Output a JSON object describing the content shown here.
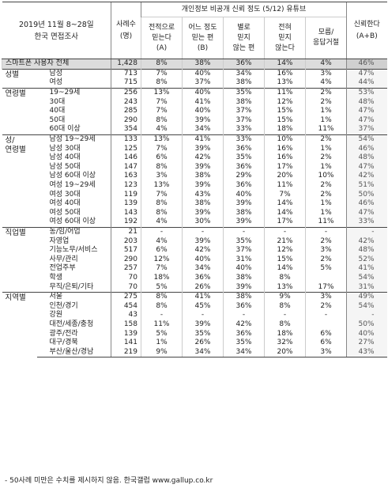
{
  "header": {
    "title_line1": "2019년 11월 8~28일",
    "title_line2": "한국 면접조사",
    "n_label_line1": "사례수",
    "n_label_line2": "(명)",
    "group_label": "개인정보 비공개 신뢰 정도 (5/12) 유튜브",
    "cols": [
      {
        "l1": "전적으로",
        "l2": "믿는다",
        "l3": "(A)"
      },
      {
        "l1": "어느 정도",
        "l2": "믿는 편",
        "l3": "(B)"
      },
      {
        "l1": "별로",
        "l2": "믿지",
        "l3": "않는 편"
      },
      {
        "l1": "전혀",
        "l2": "믿지",
        "l3": "않는다"
      },
      {
        "l1": "모름/",
        "l2": "응답거절",
        "l3": ""
      }
    ],
    "ab_line1": "신뢰한다",
    "ab_line2": "(A+B)"
  },
  "rows": [
    {
      "cat": "",
      "label": "스마트폰 사용자 전체",
      "n": "1,428",
      "a": "8%",
      "b": "38%",
      "c": "36%",
      "d": "14%",
      "e": "4%",
      "ab": "46%"
    },
    {
      "cat": "성별",
      "label": "남성",
      "n": "713",
      "a": "7%",
      "b": "40%",
      "c": "34%",
      "d": "16%",
      "e": "3%",
      "ab": "47%"
    },
    {
      "cat": "",
      "label": "여성",
      "n": "715",
      "a": "8%",
      "b": "37%",
      "c": "38%",
      "d": "13%",
      "e": "4%",
      "ab": "44%"
    },
    {
      "cat": "연령별",
      "label": "19~29세",
      "n": "256",
      "a": "13%",
      "b": "40%",
      "c": "35%",
      "d": "11%",
      "e": "2%",
      "ab": "53%"
    },
    {
      "cat": "",
      "label": "30대",
      "n": "243",
      "a": "7%",
      "b": "41%",
      "c": "38%",
      "d": "12%",
      "e": "2%",
      "ab": "48%"
    },
    {
      "cat": "",
      "label": "40대",
      "n": "285",
      "a": "7%",
      "b": "40%",
      "c": "37%",
      "d": "15%",
      "e": "1%",
      "ab": "47%"
    },
    {
      "cat": "",
      "label": "50대",
      "n": "290",
      "a": "8%",
      "b": "39%",
      "c": "37%",
      "d": "15%",
      "e": "1%",
      "ab": "47%"
    },
    {
      "cat": "",
      "label": "60대 이상",
      "n": "354",
      "a": "4%",
      "b": "34%",
      "c": "33%",
      "d": "18%",
      "e": "11%",
      "ab": "37%"
    },
    {
      "cat": "성/",
      "label": "남성 19~29세",
      "n": "133",
      "a": "13%",
      "b": "41%",
      "c": "33%",
      "d": "10%",
      "e": "2%",
      "ab": "54%"
    },
    {
      "cat": "연령별",
      "label": "남성 30대",
      "n": "125",
      "a": "7%",
      "b": "39%",
      "c": "36%",
      "d": "16%",
      "e": "1%",
      "ab": "46%"
    },
    {
      "cat": "",
      "label": "남성 40대",
      "n": "146",
      "a": "6%",
      "b": "42%",
      "c": "35%",
      "d": "16%",
      "e": "2%",
      "ab": "48%"
    },
    {
      "cat": "",
      "label": "남성 50대",
      "n": "147",
      "a": "8%",
      "b": "39%",
      "c": "36%",
      "d": "17%",
      "e": "1%",
      "ab": "47%"
    },
    {
      "cat": "",
      "label": "남성 60대 이상",
      "n": "163",
      "a": "3%",
      "b": "38%",
      "c": "29%",
      "d": "20%",
      "e": "10%",
      "ab": "42%"
    },
    {
      "cat": "",
      "label": "여성 19~29세",
      "n": "123",
      "a": "13%",
      "b": "39%",
      "c": "36%",
      "d": "11%",
      "e": "2%",
      "ab": "51%"
    },
    {
      "cat": "",
      "label": "여성 30대",
      "n": "119",
      "a": "7%",
      "b": "43%",
      "c": "40%",
      "d": "7%",
      "e": "2%",
      "ab": "50%"
    },
    {
      "cat": "",
      "label": "여성 40대",
      "n": "139",
      "a": "8%",
      "b": "38%",
      "c": "39%",
      "d": "14%",
      "e": "1%",
      "ab": "46%"
    },
    {
      "cat": "",
      "label": "여성 50대",
      "n": "143",
      "a": "8%",
      "b": "39%",
      "c": "38%",
      "d": "14%",
      "e": "1%",
      "ab": "47%"
    },
    {
      "cat": "",
      "label": "여성 60대 이상",
      "n": "192",
      "a": "4%",
      "b": "30%",
      "c": "39%",
      "d": "17%",
      "e": "11%",
      "ab": "33%"
    },
    {
      "cat": "직업별",
      "label": "농/임/어업",
      "n": "21",
      "a": "-",
      "b": "-",
      "c": "-",
      "d": "-",
      "e": "-",
      "ab": "-"
    },
    {
      "cat": "",
      "label": "자영업",
      "n": "203",
      "a": "4%",
      "b": "39%",
      "c": "35%",
      "d": "21%",
      "e": "2%",
      "ab": "42%"
    },
    {
      "cat": "",
      "label": "기능노무/서비스",
      "n": "517",
      "a": "6%",
      "b": "42%",
      "c": "37%",
      "d": "12%",
      "e": "3%",
      "ab": "48%"
    },
    {
      "cat": "",
      "label": "사무/관리",
      "n": "290",
      "a": "12%",
      "b": "40%",
      "c": "31%",
      "d": "15%",
      "e": "2%",
      "ab": "52%"
    },
    {
      "cat": "",
      "label": "전업주부",
      "n": "257",
      "a": "7%",
      "b": "34%",
      "c": "40%",
      "d": "14%",
      "e": "5%",
      "ab": "41%"
    },
    {
      "cat": "",
      "label": "학생",
      "n": "70",
      "a": "18%",
      "b": "36%",
      "c": "38%",
      "d": "8%",
      "e": "",
      "ab": "54%"
    },
    {
      "cat": "",
      "label": "무직/은퇴/기타",
      "n": "70",
      "a": "5%",
      "b": "26%",
      "c": "39%",
      "d": "13%",
      "e": "17%",
      "ab": "31%"
    },
    {
      "cat": "지역별",
      "label": "서울",
      "n": "275",
      "a": "8%",
      "b": "41%",
      "c": "38%",
      "d": "9%",
      "e": "3%",
      "ab": "49%"
    },
    {
      "cat": "",
      "label": "인천/경기",
      "n": "454",
      "a": "8%",
      "b": "45%",
      "c": "36%",
      "d": "8%",
      "e": "2%",
      "ab": "54%"
    },
    {
      "cat": "",
      "label": "강원",
      "n": "43",
      "a": "-",
      "b": "-",
      "c": "-",
      "d": "-",
      "e": "-",
      "ab": "-"
    },
    {
      "cat": "",
      "label": "대전/세종/충청",
      "n": "158",
      "a": "11%",
      "b": "39%",
      "c": "42%",
      "d": "8%",
      "e": "",
      "ab": "50%"
    },
    {
      "cat": "",
      "label": "광주/전라",
      "n": "139",
      "a": "5%",
      "b": "35%",
      "c": "36%",
      "d": "18%",
      "e": "6%",
      "ab": "40%"
    },
    {
      "cat": "",
      "label": "대구/경북",
      "n": "141",
      "a": "1%",
      "b": "26%",
      "c": "35%",
      "d": "32%",
      "e": "6%",
      "ab": "27%"
    },
    {
      "cat": "",
      "label": "부산/울산/경남",
      "n": "219",
      "a": "9%",
      "b": "34%",
      "c": "34%",
      "d": "20%",
      "e": "3%",
      "ab": "43%"
    }
  ],
  "footnote": "- 50사례 미만은 수치를 제시하지 않음. 한국갤럽 www.gallup.co.kr"
}
